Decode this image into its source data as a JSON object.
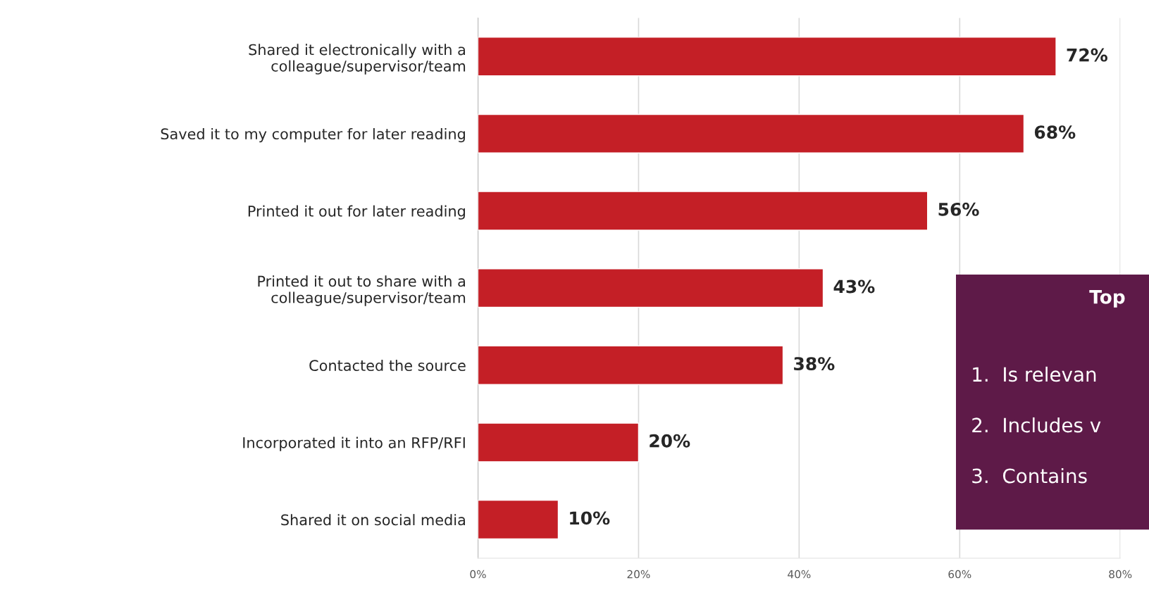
{
  "chart_data": {
    "type": "bar",
    "orientation": "horizontal",
    "categories": [
      "Shared it electronically with a\ncolleague/supervisor/team",
      "Saved it to my computer for later reading",
      "Printed it out for later reading",
      "Printed it out to share with a\ncolleague/supervisor/team",
      "Contacted the source",
      "Incorporated it into an RFP/RFI",
      "Shared it on social media"
    ],
    "values": [
      72,
      68,
      56,
      43,
      38,
      20,
      10
    ],
    "value_labels": [
      "72%",
      "68%",
      "56%",
      "43%",
      "38%",
      "20%",
      "10%"
    ],
    "color": "#c41f26",
    "xlim": [
      0,
      80
    ],
    "xticks": [
      {
        "value": 0,
        "label": "0%"
      },
      {
        "value": 20,
        "label": "20%"
      },
      {
        "value": 40,
        "label": "40%"
      },
      {
        "value": 60,
        "label": "60%"
      },
      {
        "value": 80,
        "label": "80%"
      }
    ],
    "grid": "x",
    "annotations": [
      "Top",
      "1.  Is relevan",
      "2.  Includes v",
      "3.  Contains"
    ]
  }
}
